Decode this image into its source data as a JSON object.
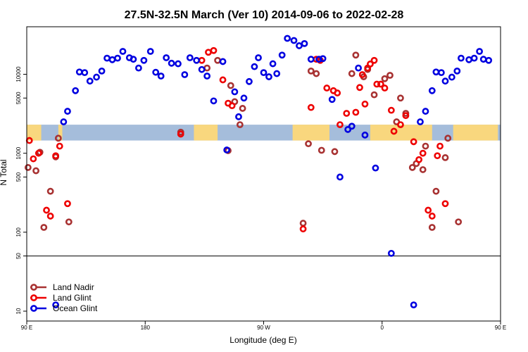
{
  "chart_data": {
    "type": "scatter",
    "title": "27.5N-32.5N March (Ver 10)   2014-09-06 to 2022-02-28",
    "xlabel": "Longitude (deg E)",
    "ylabel": "N Total",
    "x_scale": "linear",
    "y_scale": "log",
    "xlim": [
      90,
      450
    ],
    "ylim": [
      7.5,
      40000
    ],
    "x_ticks": [
      {
        "value": 90,
        "label": "90 E"
      },
      {
        "value": 180,
        "label": "180"
      },
      {
        "value": 270,
        "label": "90 W"
      },
      {
        "value": 360,
        "label": "0"
      },
      {
        "value": 450,
        "label": "90 E"
      },
      {
        "value": 540,
        "label": "180"
      }
    ],
    "y_ticks": [
      {
        "value": 10,
        "label": "10"
      },
      {
        "value": 50,
        "label": "50"
      },
      {
        "value": 100,
        "label": "100"
      },
      {
        "value": 500,
        "label": "500"
      },
      {
        "value": 1000,
        "label": "1000"
      },
      {
        "value": 5000,
        "label": "5000"
      },
      {
        "value": 10000,
        "label": "10000"
      }
    ],
    "reference_line_y": 50,
    "land_mask_band": {
      "y_range": [
        1450,
        2300
      ],
      "land_color": "#f9d77e",
      "ocean_color": "#a5bddb",
      "land_segments": [
        [
          90,
          101
        ],
        [
          114,
          117
        ],
        [
          217,
          235
        ],
        [
          292,
          320
        ],
        [
          351,
          398
        ],
        [
          414,
          448
        ]
      ]
    },
    "legend": {
      "position": "bottom-left"
    },
    "series": [
      {
        "name": "Land Nadir",
        "color": "#a83232",
        "points": [
          [
            91,
            660
          ],
          [
            97,
            600
          ],
          [
            100,
            1030
          ],
          [
            103,
            115
          ],
          [
            108,
            330
          ],
          [
            112,
            900
          ],
          [
            114,
            1550
          ],
          [
            122,
            135
          ],
          [
            207,
            1850
          ],
          [
            227,
            12000
          ],
          [
            235,
            15000
          ],
          [
            243,
            1080
          ],
          [
            245,
            7200
          ],
          [
            248,
            4500
          ],
          [
            252,
            2300
          ],
          [
            254,
            3700
          ],
          [
            300,
            130
          ],
          [
            304,
            1320
          ],
          [
            306,
            11000
          ],
          [
            310,
            10200
          ],
          [
            314,
            1090
          ],
          [
            324,
            1050
          ],
          [
            337,
            10200
          ],
          [
            340,
            17500
          ],
          [
            346,
            9300
          ],
          [
            349,
            11500
          ],
          [
            354,
            5500
          ],
          [
            362,
            8800
          ],
          [
            366,
            9700
          ],
          [
            371,
            2500
          ],
          [
            374,
            5000
          ],
          [
            378,
            3200
          ],
          [
            383,
            660
          ],
          [
            386,
            740
          ],
          [
            391,
            620
          ],
          [
            393,
            1230
          ],
          [
            398,
            115
          ],
          [
            401,
            330
          ],
          [
            408,
            880
          ],
          [
            410,
            1550
          ],
          [
            418,
            135
          ]
        ]
      },
      {
        "name": "Land Glint",
        "color": "#ee0000",
        "points": [
          [
            92,
            1450
          ],
          [
            95,
            850
          ],
          [
            99,
            1000
          ],
          [
            105,
            190
          ],
          [
            108,
            160
          ],
          [
            112,
            930
          ],
          [
            115,
            1230
          ],
          [
            121,
            230
          ],
          [
            207,
            1750
          ],
          [
            223,
            15000
          ],
          [
            228,
            19000
          ],
          [
            232,
            20000
          ],
          [
            239,
            8500
          ],
          [
            243,
            4300
          ],
          [
            246,
            4000
          ],
          [
            300,
            110
          ],
          [
            306,
            3800
          ],
          [
            310,
            15500
          ],
          [
            313,
            15000
          ],
          [
            318,
            6700
          ],
          [
            323,
            6200
          ],
          [
            326,
            5800
          ],
          [
            328,
            2300
          ],
          [
            333,
            3200
          ],
          [
            340,
            3300
          ],
          [
            343,
            6800
          ],
          [
            345,
            9900
          ],
          [
            347,
            4200
          ],
          [
            349,
            12000
          ],
          [
            351,
            13500
          ],
          [
            354,
            15000
          ],
          [
            356,
            7500
          ],
          [
            359,
            7500
          ],
          [
            362,
            6700
          ],
          [
            367,
            3500
          ],
          [
            369,
            1900
          ],
          [
            374,
            2300
          ],
          [
            378,
            3000
          ],
          [
            384,
            1400
          ],
          [
            388,
            830
          ],
          [
            391,
            1000
          ],
          [
            395,
            190
          ],
          [
            398,
            160
          ],
          [
            402,
            930
          ],
          [
            404,
            1230
          ],
          [
            408,
            230
          ]
        ]
      },
      {
        "name": "Ocean Glint",
        "color": "#0000e0",
        "points": [
          [
            112,
            12
          ],
          [
            118,
            2500
          ],
          [
            121,
            3400
          ],
          [
            127,
            6200
          ],
          [
            130,
            10700
          ],
          [
            134,
            10500
          ],
          [
            138,
            8200
          ],
          [
            143,
            9200
          ],
          [
            147,
            11000
          ],
          [
            151,
            16000
          ],
          [
            155,
            15300
          ],
          [
            159,
            16000
          ],
          [
            163,
            19500
          ],
          [
            168,
            16200
          ],
          [
            171,
            15500
          ],
          [
            175,
            12000
          ],
          [
            179,
            15000
          ],
          [
            184,
            19500
          ],
          [
            188,
            10600
          ],
          [
            192,
            9500
          ],
          [
            196,
            16200
          ],
          [
            200,
            13800
          ],
          [
            205,
            13600
          ],
          [
            210,
            9900
          ],
          [
            214,
            16200
          ],
          [
            219,
            15000
          ],
          [
            223,
            11500
          ],
          [
            227,
            9500
          ],
          [
            232,
            4600
          ],
          [
            239,
            14500
          ],
          [
            242,
            1100
          ],
          [
            248,
            6000
          ],
          [
            251,
            2900
          ],
          [
            255,
            5000
          ],
          [
            259,
            8100
          ],
          [
            263,
            12500
          ],
          [
            266,
            16200
          ],
          [
            270,
            10500
          ],
          [
            274,
            9300
          ],
          [
            277,
            13600
          ],
          [
            280,
            10200
          ],
          [
            284,
            17500
          ],
          [
            288,
            28500
          ],
          [
            293,
            26800
          ],
          [
            297,
            23000
          ],
          [
            301,
            24500
          ],
          [
            306,
            15500
          ],
          [
            312,
            15500
          ],
          [
            315,
            15800
          ],
          [
            322,
            4800
          ],
          [
            328,
            500
          ],
          [
            334,
            2000
          ],
          [
            337,
            2200
          ],
          [
            342,
            12000
          ],
          [
            347,
            1700
          ],
          [
            355,
            650
          ],
          [
            367,
            54
          ],
          [
            384,
            12
          ],
          [
            389,
            2500
          ],
          [
            393,
            3400
          ],
          [
            398,
            6200
          ],
          [
            401,
            10700
          ],
          [
            405,
            10500
          ],
          [
            408,
            8200
          ],
          [
            413,
            9200
          ],
          [
            417,
            11000
          ],
          [
            420,
            16000
          ],
          [
            426,
            15300
          ],
          [
            430,
            16000
          ],
          [
            434,
            19500
          ],
          [
            437,
            15500
          ],
          [
            441,
            15000
          ]
        ]
      }
    ]
  }
}
